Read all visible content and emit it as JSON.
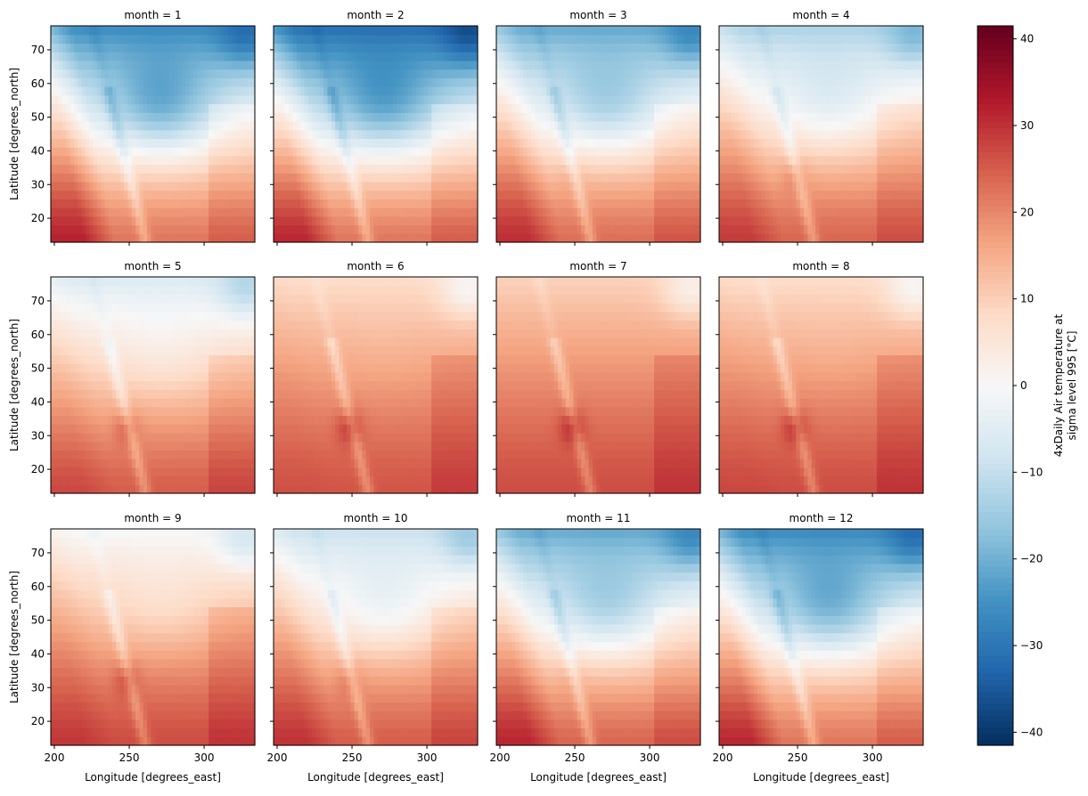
{
  "figure": {
    "xlabel": "Longitude [degrees_east]",
    "ylabel": "Latitude [degrees_north]",
    "colorbar_label_line1": "4xDaily Air temperature at",
    "colorbar_label_line2": "sigma level 995 [°C]"
  },
  "chart_data": {
    "type": "heatmap",
    "facet_by": "month",
    "facet_titles": [
      "month = 1",
      "month = 2",
      "month = 3",
      "month = 4",
      "month = 5",
      "month = 6",
      "month = 7",
      "month = 8",
      "month = 9",
      "month = 10",
      "month = 11",
      "month = 12"
    ],
    "layout": "4 columns x 3 rows",
    "xlabel": "Longitude [degrees_east]",
    "ylabel": "Latitude [degrees_north]",
    "x_range": [
      200,
      330
    ],
    "y_range": [
      15,
      75
    ],
    "x_ticks": [
      200,
      250,
      300
    ],
    "y_ticks": [
      20,
      30,
      40,
      50,
      60,
      70
    ],
    "colorbar": {
      "label": "4xDaily Air temperature at sigma level 995 [°C]",
      "range": [
        -41.5,
        41.5
      ],
      "ticks": [
        -40,
        -30,
        -20,
        -10,
        0,
        10,
        20,
        30,
        40
      ],
      "colormap": "RdBu_r",
      "colors": {
        "low": "#053061",
        "mid": "#f7f7f7",
        "high": "#67001f"
      }
    },
    "monthly_summary": [
      {
        "month": 1,
        "north_lat70_c": -25,
        "south_lat20_c": 22
      },
      {
        "month": 2,
        "north_lat70_c": -30,
        "south_lat20_c": 22
      },
      {
        "month": 3,
        "north_lat70_c": -20,
        "south_lat20_c": 23
      },
      {
        "month": 4,
        "north_lat70_c": -12,
        "south_lat20_c": 24
      },
      {
        "month": 5,
        "north_lat70_c": -5,
        "south_lat20_c": 25
      },
      {
        "month": 6,
        "north_lat70_c": 8,
        "south_lat20_c": 26
      },
      {
        "month": 7,
        "north_lat70_c": 10,
        "south_lat20_c": 27
      },
      {
        "month": 8,
        "north_lat70_c": 8,
        "south_lat20_c": 27
      },
      {
        "month": 9,
        "north_lat70_c": 0,
        "south_lat20_c": 27
      },
      {
        "month": 10,
        "north_lat70_c": -8,
        "south_lat20_c": 25
      },
      {
        "month": 11,
        "north_lat70_c": -20,
        "south_lat20_c": 24
      },
      {
        "month": 12,
        "north_lat70_c": -25,
        "south_lat20_c": 22
      }
    ]
  }
}
